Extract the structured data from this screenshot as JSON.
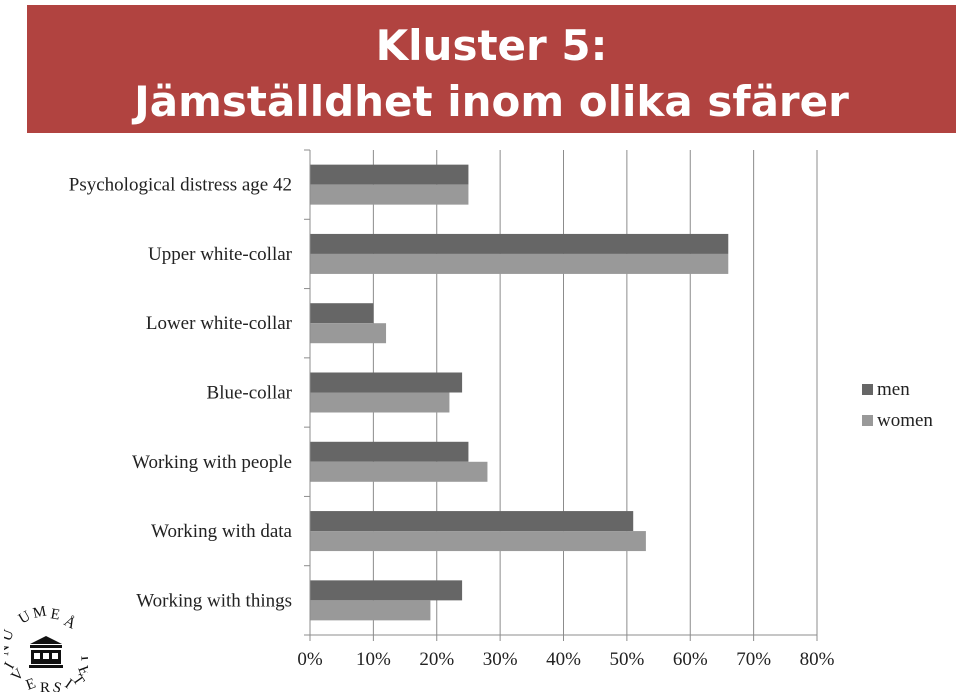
{
  "header": {
    "title_line1": "Kluster 5:",
    "title_line2": "Jämställdhet inom olika sfärer",
    "banner_color": "#b14340"
  },
  "logo": {
    "text": "UMEÅ UNIVERSITET",
    "icon": "umea-university-seal-icon"
  },
  "chart_data": {
    "type": "bar",
    "orientation": "horizontal",
    "categories": [
      "Psychological distress age 42",
      "Upper white-collar",
      "Lower white-collar",
      "Blue-collar",
      "Working with people",
      "Working with data",
      "Working with things"
    ],
    "series": [
      {
        "name": "men",
        "color": "#666666",
        "values": [
          25,
          66,
          10,
          24,
          25,
          51,
          24
        ]
      },
      {
        "name": "women",
        "color": "#999999",
        "values": [
          25,
          66,
          12,
          22,
          28,
          53,
          19
        ]
      }
    ],
    "xlim": [
      0,
      80
    ],
    "xticks": [
      "0%",
      "10%",
      "20%",
      "30%",
      "40%",
      "50%",
      "60%",
      "70%",
      "80%"
    ],
    "grid": true,
    "legend_position": "right"
  }
}
